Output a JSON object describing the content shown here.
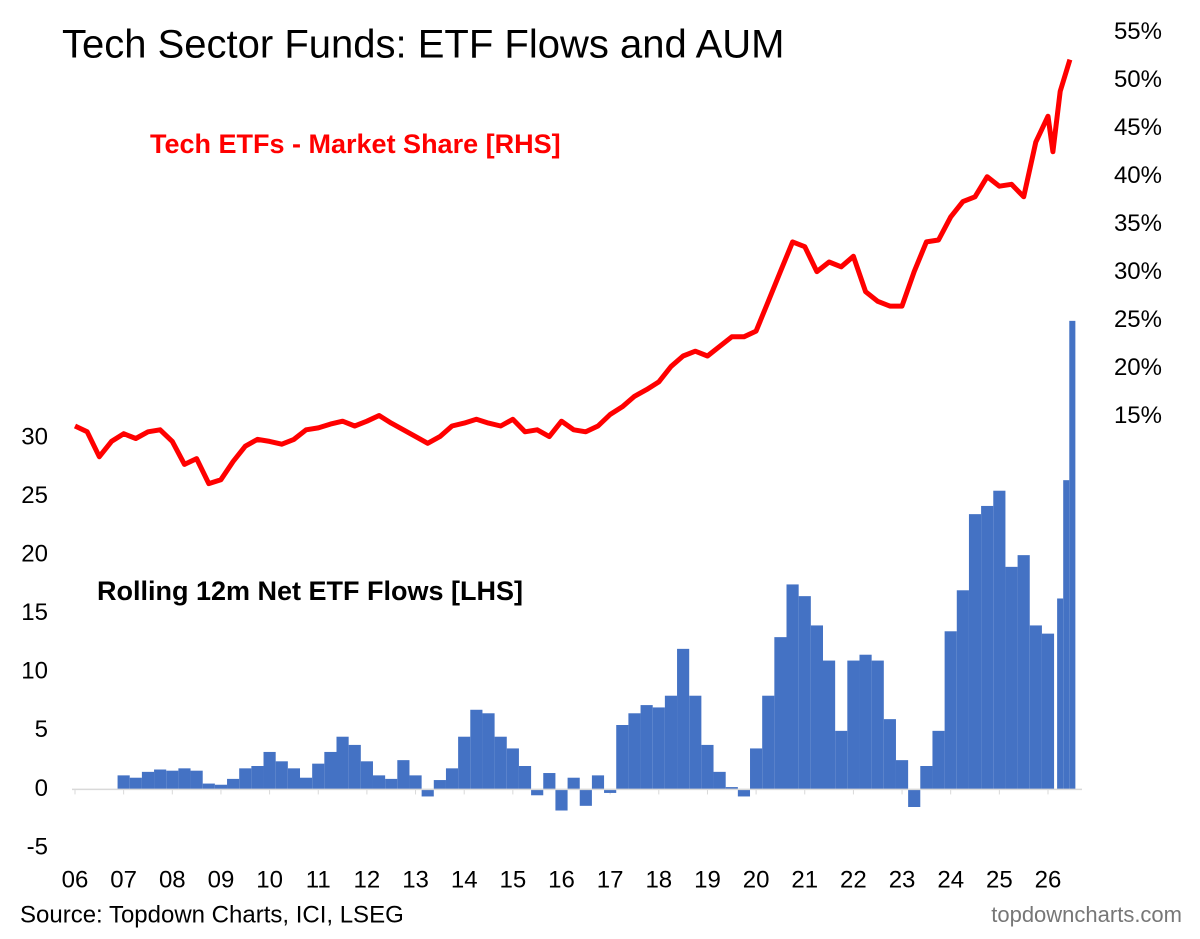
{
  "chart_data": {
    "type": "combo",
    "title": "Tech Sector Funds: ETF Flows and AUM",
    "source": "Source: Topdown Charts, ICI, LSEG",
    "watermark": "topdowncharts.com",
    "xlim": [
      2006,
      2026.6
    ],
    "xticks": [
      {
        "value": 2006,
        "label": "06"
      },
      {
        "value": 2007,
        "label": "07"
      },
      {
        "value": 2008,
        "label": "08"
      },
      {
        "value": 2009,
        "label": "09"
      },
      {
        "value": 2010,
        "label": "10"
      },
      {
        "value": 2011,
        "label": "11"
      },
      {
        "value": 2012,
        "label": "12"
      },
      {
        "value": 2013,
        "label": "13"
      },
      {
        "value": 2014,
        "label": "14"
      },
      {
        "value": 2015,
        "label": "15"
      },
      {
        "value": 2016,
        "label": "16"
      },
      {
        "value": 2017,
        "label": "17"
      },
      {
        "value": 2018,
        "label": "18"
      },
      {
        "value": 2019,
        "label": "19"
      },
      {
        "value": 2020,
        "label": "20"
      },
      {
        "value": 2021,
        "label": "21"
      },
      {
        "value": 2022,
        "label": "22"
      },
      {
        "value": 2023,
        "label": "23"
      },
      {
        "value": 2024,
        "label": "24"
      },
      {
        "value": 2025,
        "label": "25"
      },
      {
        "value": 2026,
        "label": "26"
      }
    ],
    "ylim": [
      -5,
      65
    ],
    "yticks": [
      -5,
      0,
      5,
      10,
      15,
      20,
      25,
      30
    ],
    "y2lim": [
      -30,
      55.5
    ],
    "y2ticks": [
      {
        "value": 15,
        "label": "15%"
      },
      {
        "value": 20,
        "label": "20%"
      },
      {
        "value": 25,
        "label": "25%"
      },
      {
        "value": 30,
        "label": "30%"
      },
      {
        "value": 35,
        "label": "35%"
      },
      {
        "value": 40,
        "label": "40%"
      },
      {
        "value": 45,
        "label": "45%"
      },
      {
        "value": 50,
        "label": "50%"
      },
      {
        "value": 55,
        "label": "55%"
      }
    ],
    "series": [
      {
        "name": "Rolling 12m Net ETF Flows [LHS]",
        "type": "bar",
        "axis": "y",
        "color": "#4472c4",
        "x": [
          2007,
          2007.25,
          2007.5,
          2007.75,
          2008,
          2008.25,
          2008.5,
          2008.75,
          2009,
          2009.25,
          2009.5,
          2009.75,
          2010,
          2010.25,
          2010.5,
          2010.75,
          2011,
          2011.25,
          2011.5,
          2011.75,
          2012,
          2012.25,
          2012.5,
          2012.75,
          2013,
          2013.25,
          2013.5,
          2013.75,
          2014,
          2014.25,
          2014.5,
          2014.75,
          2015,
          2015.25,
          2015.5,
          2015.75,
          2016,
          2016.25,
          2016.5,
          2016.75,
          2017,
          2017.25,
          2017.5,
          2017.75,
          2018,
          2018.25,
          2018.5,
          2018.75,
          2019,
          2019.25,
          2019.5,
          2019.75,
          2020,
          2020.25,
          2020.5,
          2020.75,
          2021,
          2021.25,
          2021.5,
          2021.75,
          2022,
          2022.25,
          2022.5,
          2022.75,
          2023,
          2023.25,
          2023.5,
          2023.75,
          2024,
          2024.25,
          2024.5,
          2024.75,
          2025,
          2025.25,
          2025.5,
          2025.75,
          2026,
          2026.25,
          2026.375,
          2026.5
        ],
        "values": [
          1.2,
          1.0,
          1.5,
          1.7,
          1.6,
          1.8,
          1.6,
          0.5,
          0.4,
          0.9,
          1.8,
          2.0,
          3.2,
          2.4,
          1.8,
          1.0,
          2.2,
          3.2,
          4.5,
          3.8,
          2.4,
          1.2,
          0.9,
          2.5,
          1.2,
          -0.6,
          0.8,
          1.8,
          4.5,
          6.8,
          6.5,
          4.5,
          3.5,
          2.0,
          -0.5,
          1.4,
          -1.8,
          1.0,
          -1.4,
          1.2,
          -0.3,
          5.5,
          6.5,
          7.2,
          7.0,
          8.0,
          12.0,
          8.0,
          3.8,
          1.5,
          0.2,
          -0.6,
          3.5,
          8.0,
          13.0,
          17.5,
          16.5,
          14.0,
          11.0,
          5.0,
          11.0,
          11.5,
          11.0,
          6.0,
          2.5,
          -1.5,
          2.0,
          5.0,
          13.5,
          17.0,
          23.5,
          24.2,
          25.5,
          19.0,
          20.0,
          14.0,
          13.3,
          16.3,
          26.4,
          40.0
        ]
      },
      {
        "name": "Tech ETFs - Market Share [RHS]",
        "type": "line",
        "axis": "y2",
        "color": "#ff0000",
        "x": [
          2006,
          2006.25,
          2006.5,
          2006.75,
          2007,
          2007.25,
          2007.5,
          2007.75,
          2008,
          2008.25,
          2008.5,
          2008.75,
          2009,
          2009.25,
          2009.5,
          2009.75,
          2010,
          2010.25,
          2010.5,
          2010.75,
          2011,
          2011.25,
          2011.5,
          2011.75,
          2012,
          2012.25,
          2012.5,
          2012.75,
          2013,
          2013.25,
          2013.5,
          2013.75,
          2014,
          2014.25,
          2014.5,
          2014.75,
          2015,
          2015.25,
          2015.5,
          2015.75,
          2016,
          2016.25,
          2016.5,
          2016.75,
          2017,
          2017.25,
          2017.5,
          2017.75,
          2018,
          2018.25,
          2018.5,
          2018.75,
          2019,
          2019.25,
          2019.5,
          2019.75,
          2020,
          2020.25,
          2020.5,
          2020.75,
          2021,
          2021.25,
          2021.5,
          2021.75,
          2022,
          2022.25,
          2022.5,
          2022.75,
          2023,
          2023.25,
          2023.5,
          2023.75,
          2024,
          2024.25,
          2024.5,
          2024.75,
          2025,
          2025.25,
          2025.5,
          2025.75,
          2026,
          2026.1,
          2026.25,
          2026.45
        ],
        "values": [
          14.0,
          13.4,
          10.8,
          12.4,
          13.2,
          12.7,
          13.4,
          13.6,
          12.4,
          10.0,
          10.6,
          8.0,
          8.4,
          10.3,
          11.9,
          12.6,
          12.4,
          12.1,
          12.6,
          13.6,
          13.8,
          14.2,
          14.5,
          14.0,
          14.5,
          15.1,
          14.3,
          13.6,
          12.9,
          12.2,
          12.9,
          14.0,
          14.3,
          14.7,
          14.3,
          14.0,
          14.7,
          13.4,
          13.6,
          12.9,
          14.5,
          13.6,
          13.4,
          14.0,
          15.2,
          16.0,
          17.1,
          17.8,
          18.6,
          20.2,
          21.3,
          21.8,
          21.3,
          22.3,
          23.3,
          23.3,
          23.9,
          27.0,
          30.1,
          33.2,
          32.7,
          30.1,
          31.1,
          30.6,
          31.7,
          28.0,
          27.0,
          26.5,
          26.5,
          30.1,
          33.2,
          33.4,
          35.8,
          37.4,
          37.9,
          40.0,
          39.0,
          39.2,
          37.9,
          43.6,
          46.3,
          42.6,
          48.9,
          52.2
        ]
      }
    ]
  }
}
